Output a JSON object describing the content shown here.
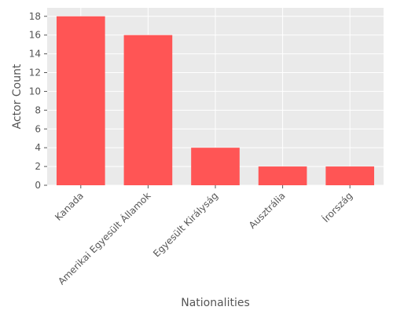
{
  "chart_data": {
    "type": "bar",
    "title": "",
    "xlabel": "Nationalities",
    "ylabel": "Actor Count",
    "categories": [
      "Kanada",
      "Amerikai Egyesült Államok",
      "Egyesült Királyság",
      "Ausztrália",
      "Írország"
    ],
    "values": [
      18,
      16,
      4,
      2,
      2
    ],
    "ylim": [
      0,
      18.9
    ],
    "yticks": [
      0,
      2,
      4,
      6,
      8,
      10,
      12,
      14,
      16,
      18
    ],
    "grid": true,
    "legend": "none",
    "bar_color": "#FF5555",
    "plot_background": "#EAEAEA",
    "grid_color": "#FFFFFF",
    "text_color": "#555555"
  }
}
